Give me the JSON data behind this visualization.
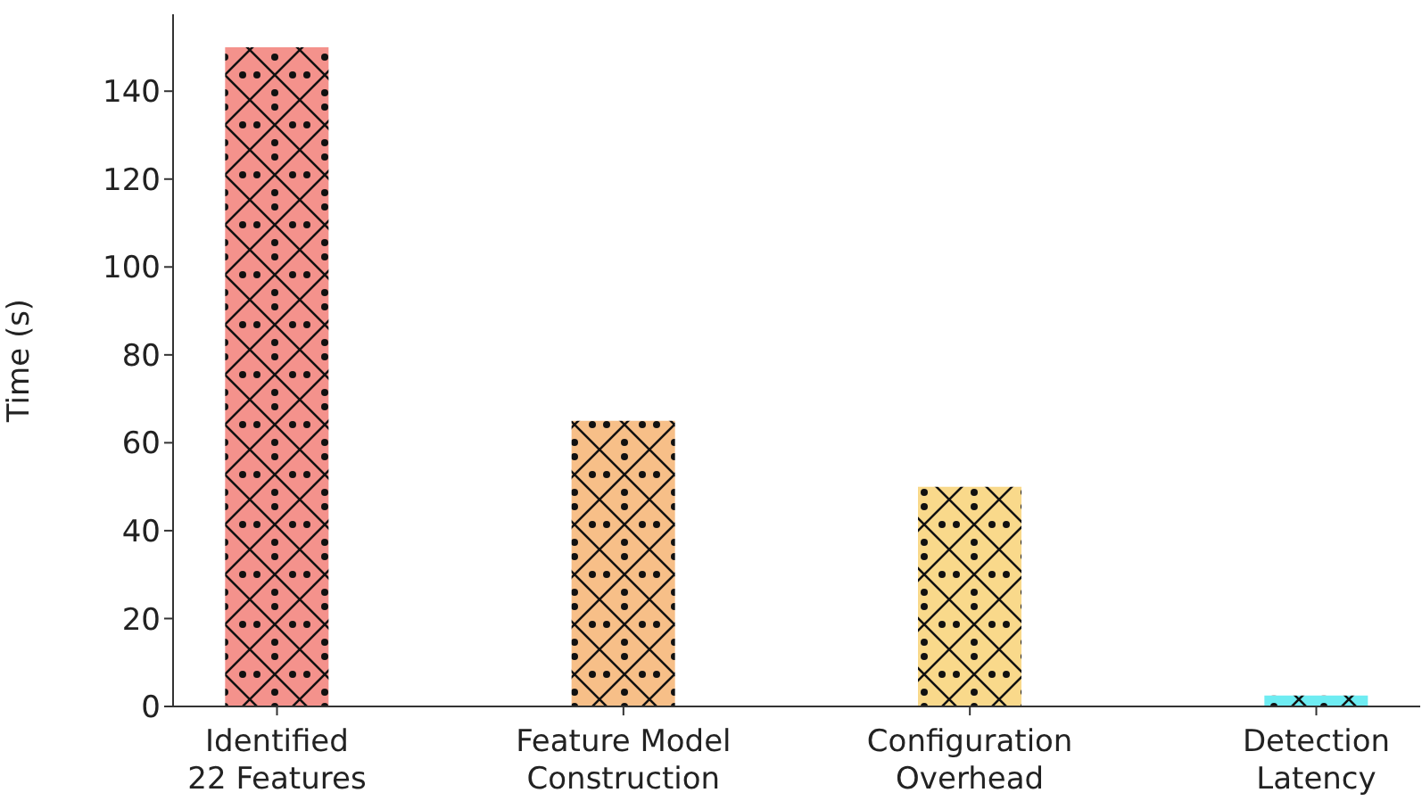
{
  "chart_data": {
    "type": "bar",
    "ylabel": "Time (s)",
    "categories": [
      "Identified\n22 Features",
      "Feature Model\nConstruction",
      "Configuration\nOverhead",
      "Detection\nLatency"
    ],
    "values": [
      150,
      65,
      50,
      2.5
    ],
    "colors": [
      "#f4928c",
      "#f7bf88",
      "#f9d98b",
      "#6eecf2"
    ],
    "ylim": [
      0,
      157.5
    ],
    "yticks": [
      0,
      20,
      40,
      60,
      80,
      100,
      120,
      140
    ],
    "grid": false,
    "legend": false
  }
}
